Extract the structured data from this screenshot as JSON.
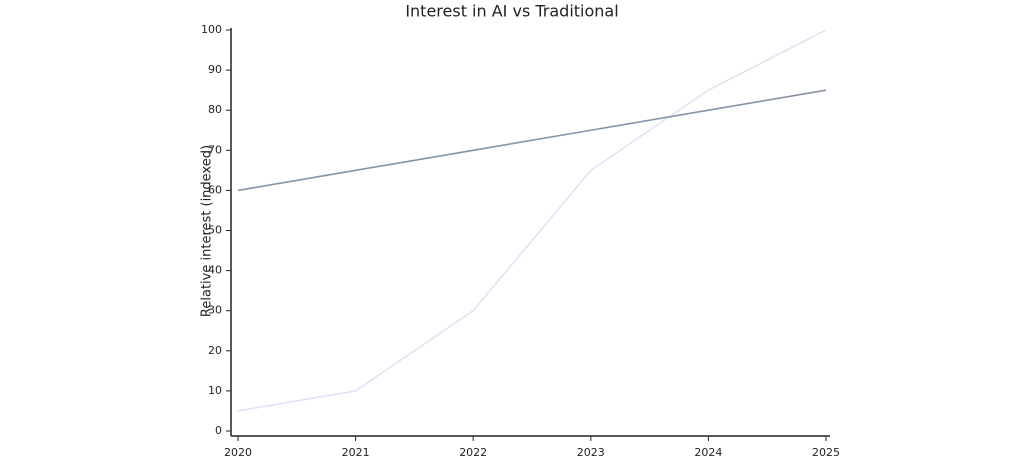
{
  "chart_data": {
    "type": "line",
    "title": "Interest in AI vs Traditional",
    "y_label": "Relative interest (indexed)",
    "categories": [
      "2020",
      "2021",
      "2022",
      "2023",
      "2024",
      "2025"
    ],
    "series": [
      {
        "color": "#e2e2f7",
        "values": [
          5,
          10,
          30,
          65,
          85,
          100
        ]
      },
      {
        "color": "#8593aa",
        "values": [
          60,
          65,
          70,
          75,
          80,
          85
        ]
      }
    ],
    "ylim": [
      0,
      100
    ],
    "yticks": [
      0,
      10,
      20,
      30,
      40,
      50,
      60,
      70,
      80,
      90,
      100
    ],
    "grid": false
  }
}
